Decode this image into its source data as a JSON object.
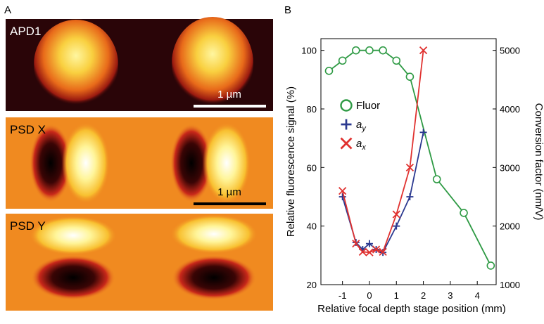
{
  "panel_a": {
    "label": "A",
    "images": [
      {
        "label": "APD1",
        "scale_bar": "1 µm"
      },
      {
        "label": "PSD X",
        "scale_bar": "1 µm"
      },
      {
        "label": "PSD Y"
      }
    ]
  },
  "chart_data": {
    "type": "line",
    "panel_label": "B",
    "xlabel": "Relative focal depth stage position (mm)",
    "ylabel": "Relative fluorescence signal (%)",
    "y2label": "Conversion factor (nm/V)",
    "xlim": [
      -1.8,
      4.7
    ],
    "xticks": [
      -1,
      0,
      1,
      2,
      3,
      4
    ],
    "ylim": [
      20,
      104
    ],
    "yticks": [
      20,
      40,
      60,
      80,
      100
    ],
    "y2lim": [
      1000,
      5200
    ],
    "y2ticks": [
      1000,
      2000,
      3000,
      4000,
      5000
    ],
    "legend": "upper left",
    "series": [
      {
        "name": "Fluor",
        "color": "#2e9a44",
        "marker": "o",
        "axis": "y",
        "x": [
          -1.5,
          -1,
          -0.5,
          0,
          0.5,
          1,
          1.5,
          2.5,
          3.5,
          4.5
        ],
        "values": [
          93,
          96.5,
          100,
          100,
          100,
          96.5,
          91,
          56,
          44.5,
          26.5
        ]
      },
      {
        "name": "ay",
        "color": "#2b3990",
        "marker": "+",
        "axis": "y2",
        "x": [
          -1,
          -0.5,
          -0.25,
          0,
          0.25,
          0.5,
          1,
          1.5,
          2
        ],
        "values": [
          2500,
          1720,
          1600,
          1700,
          1600,
          1550,
          2000,
          2500,
          3600
        ]
      },
      {
        "name": "ax",
        "color": "#e0312f",
        "marker": "x",
        "axis": "y2",
        "x": [
          -1,
          -0.5,
          -0.25,
          0,
          0.25,
          0.5,
          1,
          1.5,
          2
        ],
        "values": [
          2600,
          1700,
          1560,
          1550,
          1600,
          1560,
          2200,
          3000,
          5000
        ]
      }
    ]
  }
}
